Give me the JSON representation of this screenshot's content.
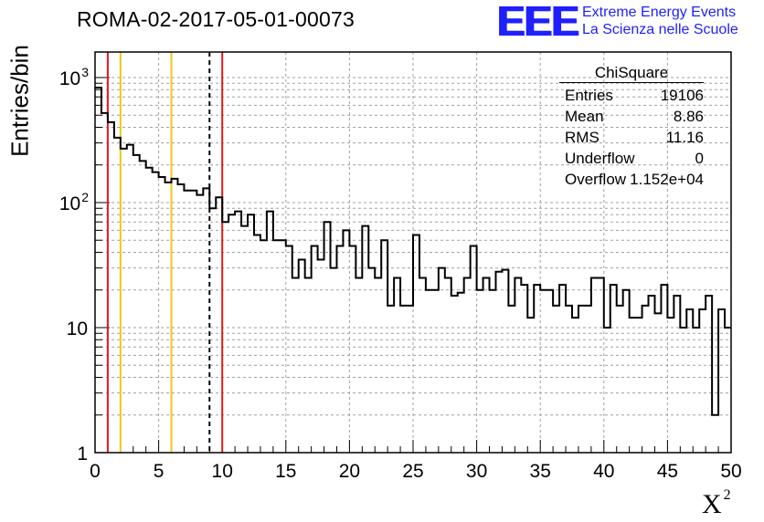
{
  "header": {
    "title": "ROMA-02-2017-05-01-00073",
    "logo_text": "EEE",
    "tagline_1": "Extreme Energy Events",
    "tagline_2": "La Scienza nelle Scuole"
  },
  "stats_box": {
    "name": "ChiSquare",
    "rows": [
      {
        "key": "Entries",
        "value": "19106"
      },
      {
        "key": "Mean",
        "value": "8.86"
      },
      {
        "key": "RMS",
        "value": "11.16"
      },
      {
        "key": "Underflow",
        "value": "0"
      },
      {
        "key": "Overflow",
        "value": "1.152e+04"
      }
    ]
  },
  "colors": {
    "histogram": "#000000",
    "red_line": "#e31a1c",
    "yellow_line": "#f5c518",
    "dashed_line": "#000000",
    "logo": "#1f1fff",
    "grid": "#a0a0a0"
  },
  "chart_data": {
    "type": "bar",
    "style": "step-histogram",
    "title": "ROMA-02-2017-05-01-00073",
    "xlabel": "X",
    "xlabel_superscript": "2",
    "ylabel": "Entries/bin",
    "xlim": [
      0,
      50
    ],
    "ylim": [
      1,
      1600
    ],
    "yscale": "log",
    "grid": true,
    "bin_width": 0.5,
    "x_ticks": [
      0,
      5,
      10,
      15,
      20,
      25,
      30,
      35,
      40,
      45,
      50
    ],
    "x_tick_labels": [
      "0",
      "5",
      "10",
      "15",
      "20",
      "25",
      "30",
      "35",
      "40",
      "45",
      "50"
    ],
    "y_ticks": [
      1,
      10,
      100,
      1000
    ],
    "y_tick_labels": [
      "1",
      "10",
      "10²",
      "10³"
    ],
    "values": [
      830,
      520,
      440,
      330,
      270,
      290,
      240,
      215,
      190,
      175,
      160,
      145,
      155,
      140,
      125,
      125,
      115,
      130,
      90,
      110,
      70,
      80,
      85,
      65,
      80,
      55,
      50,
      85,
      50,
      50,
      45,
      25,
      35,
      25,
      45,
      35,
      70,
      30,
      45,
      60,
      45,
      25,
      65,
      30,
      25,
      50,
      15,
      25,
      15,
      15,
      55,
      25,
      20,
      20,
      30,
      25,
      18,
      19,
      25,
      45,
      20,
      25,
      20,
      28,
      29,
      15,
      25,
      22,
      12,
      22,
      20,
      20,
      15,
      22,
      15,
      12,
      15,
      15,
      25,
      25,
      10,
      22,
      15,
      20,
      12,
      12,
      15,
      18,
      13,
      22,
      12,
      18,
      10,
      14,
      10,
      14,
      18,
      2,
      14,
      10
    ],
    "vertical_lines": [
      {
        "x": 1,
        "color": "red",
        "style": "solid"
      },
      {
        "x": 2,
        "color": "yellow",
        "style": "solid"
      },
      {
        "x": 6,
        "color": "yellow",
        "style": "solid"
      },
      {
        "x": 9,
        "color": "black",
        "style": "dashed"
      },
      {
        "x": 10,
        "color": "red",
        "style": "solid"
      }
    ]
  }
}
